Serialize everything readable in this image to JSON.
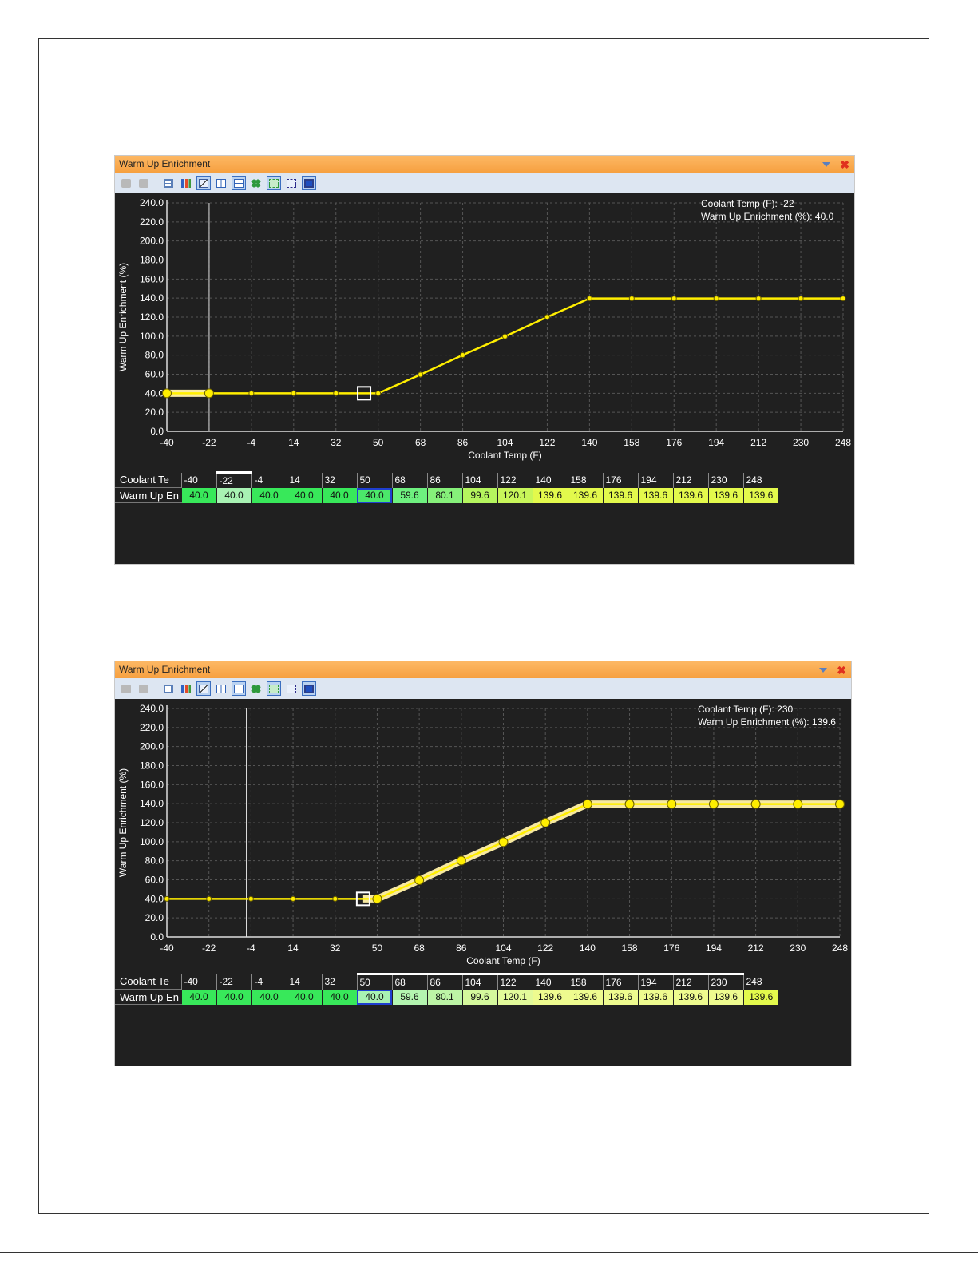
{
  "panels": [
    {
      "title": "Warm Up Enrichment",
      "readout": {
        "x_label": "Coolant Temp (F): -22",
        "y_label": "Warm Up Enrichment (%): 40.0"
      },
      "cursor_x": -22,
      "highlight_from": -40,
      "highlight_to": -22,
      "table": {
        "row1_label": "Coolant Te",
        "row2_label": "Warm Up En",
        "x_values": [
          "-40",
          "-22",
          "-4",
          "14",
          "32",
          "50",
          "68",
          "86",
          "104",
          "122",
          "140",
          "158",
          "176",
          "194",
          "212",
          "230",
          "248"
        ],
        "y_values": [
          "40.0",
          "40.0",
          "40.0",
          "40.0",
          "40.0",
          "40.0",
          "59.6",
          "80.1",
          "99.6",
          "120.1",
          "139.6",
          "139.6",
          "139.6",
          "139.6",
          "139.6",
          "139.6",
          "139.6"
        ],
        "header_marked": [
          "-22"
        ],
        "selected_cell": "50",
        "cell_colors": [
          "#38e85a",
          "#a8f2b3",
          "#38e85a",
          "#38e85a",
          "#38e85a",
          "#4be86a",
          "#6ef07f",
          "#86f07a",
          "#b5f55e",
          "#c8f65a",
          "#e3f94c",
          "#e3f94c",
          "#e3f94c",
          "#e3f94c",
          "#e3f94c",
          "#e3f94c",
          "#e3f94c"
        ]
      }
    },
    {
      "title": "Warm Up Enrichment",
      "readout": {
        "x_label": "Coolant Temp (F): 230",
        "y_label": "Warm Up Enrichment (%): 139.6"
      },
      "cursor_x": -6,
      "highlight_from": 44,
      "highlight_to": 248,
      "table": {
        "row1_label": "Coolant Te",
        "row2_label": "Warm Up En",
        "x_values": [
          "-40",
          "-22",
          "-4",
          "14",
          "32",
          "50",
          "68",
          "86",
          "104",
          "122",
          "140",
          "158",
          "176",
          "194",
          "212",
          "230",
          "248"
        ],
        "y_values": [
          "40.0",
          "40.0",
          "40.0",
          "40.0",
          "40.0",
          "40.0",
          "59.6",
          "80.1",
          "99.6",
          "120.1",
          "139.6",
          "139.6",
          "139.6",
          "139.6",
          "139.6",
          "139.6",
          "139.6"
        ],
        "header_marked": [
          "50",
          "68",
          "86",
          "104",
          "122",
          "140",
          "158",
          "176",
          "194",
          "212",
          "230"
        ],
        "selected_cell": "50",
        "cell_colors": [
          "#38e85a",
          "#38e85a",
          "#38e85a",
          "#38e85a",
          "#38e85a",
          "#a8f2b3",
          "#b4f5b0",
          "#bdf5a6",
          "#d4f89c",
          "#e2fa9a",
          "#eefb8f",
          "#eefb8f",
          "#eefb8f",
          "#eefb8f",
          "#eefb8f",
          "#eefb8f",
          "#e3f94c"
        ]
      }
    }
  ],
  "chart_data": [
    {
      "type": "line",
      "title": "Warm Up Enrichment",
      "xlabel": "Coolant Temp (F)",
      "ylabel": "Warm Up Enrichment (%)",
      "x": [
        -40,
        -22,
        -4,
        14,
        32,
        50,
        68,
        86,
        104,
        122,
        140,
        158,
        176,
        194,
        212,
        230,
        248
      ],
      "series": [
        {
          "name": "Warm Up Enrichment (%)",
          "values": [
            40.0,
            40.0,
            40.0,
            40.0,
            40.0,
            40.0,
            59.6,
            80.1,
            99.6,
            120.1,
            139.6,
            139.6,
            139.6,
            139.6,
            139.6,
            139.6,
            139.6
          ]
        }
      ],
      "xlim": [
        -40,
        248
      ],
      "ylim": [
        0,
        240
      ],
      "yticks": [
        "0.0",
        "20.0",
        "40.0",
        "60.0",
        "80.0",
        "100.0",
        "120.0",
        "140.0",
        "160.0",
        "180.0",
        "200.0",
        "220.0",
        "240.0"
      ],
      "xticks": [
        "-40",
        "-22",
        "-4",
        "14",
        "32",
        "50",
        "68",
        "86",
        "104",
        "122",
        "140",
        "158",
        "176",
        "194",
        "212",
        "230",
        "248"
      ],
      "grid": true
    },
    {
      "type": "line",
      "title": "Warm Up Enrichment",
      "xlabel": "Coolant Temp (F)",
      "ylabel": "Warm Up Enrichment (%)",
      "x": [
        -40,
        -22,
        -4,
        14,
        32,
        50,
        68,
        86,
        104,
        122,
        140,
        158,
        176,
        194,
        212,
        230,
        248
      ],
      "series": [
        {
          "name": "Warm Up Enrichment (%)",
          "values": [
            40.0,
            40.0,
            40.0,
            40.0,
            40.0,
            40.0,
            59.6,
            80.1,
            99.6,
            120.1,
            139.6,
            139.6,
            139.6,
            139.6,
            139.6,
            139.6,
            139.6
          ]
        }
      ],
      "xlim": [
        -40,
        248
      ],
      "ylim": [
        0,
        240
      ],
      "yticks": [
        "0.0",
        "20.0",
        "40.0",
        "60.0",
        "80.0",
        "100.0",
        "120.0",
        "140.0",
        "160.0",
        "180.0",
        "200.0",
        "220.0",
        "240.0"
      ],
      "xticks": [
        "-40",
        "-22",
        "-4",
        "14",
        "32",
        "50",
        "68",
        "86",
        "104",
        "122",
        "140",
        "158",
        "176",
        "194",
        "212",
        "230",
        "248"
      ],
      "grid": true
    }
  ]
}
